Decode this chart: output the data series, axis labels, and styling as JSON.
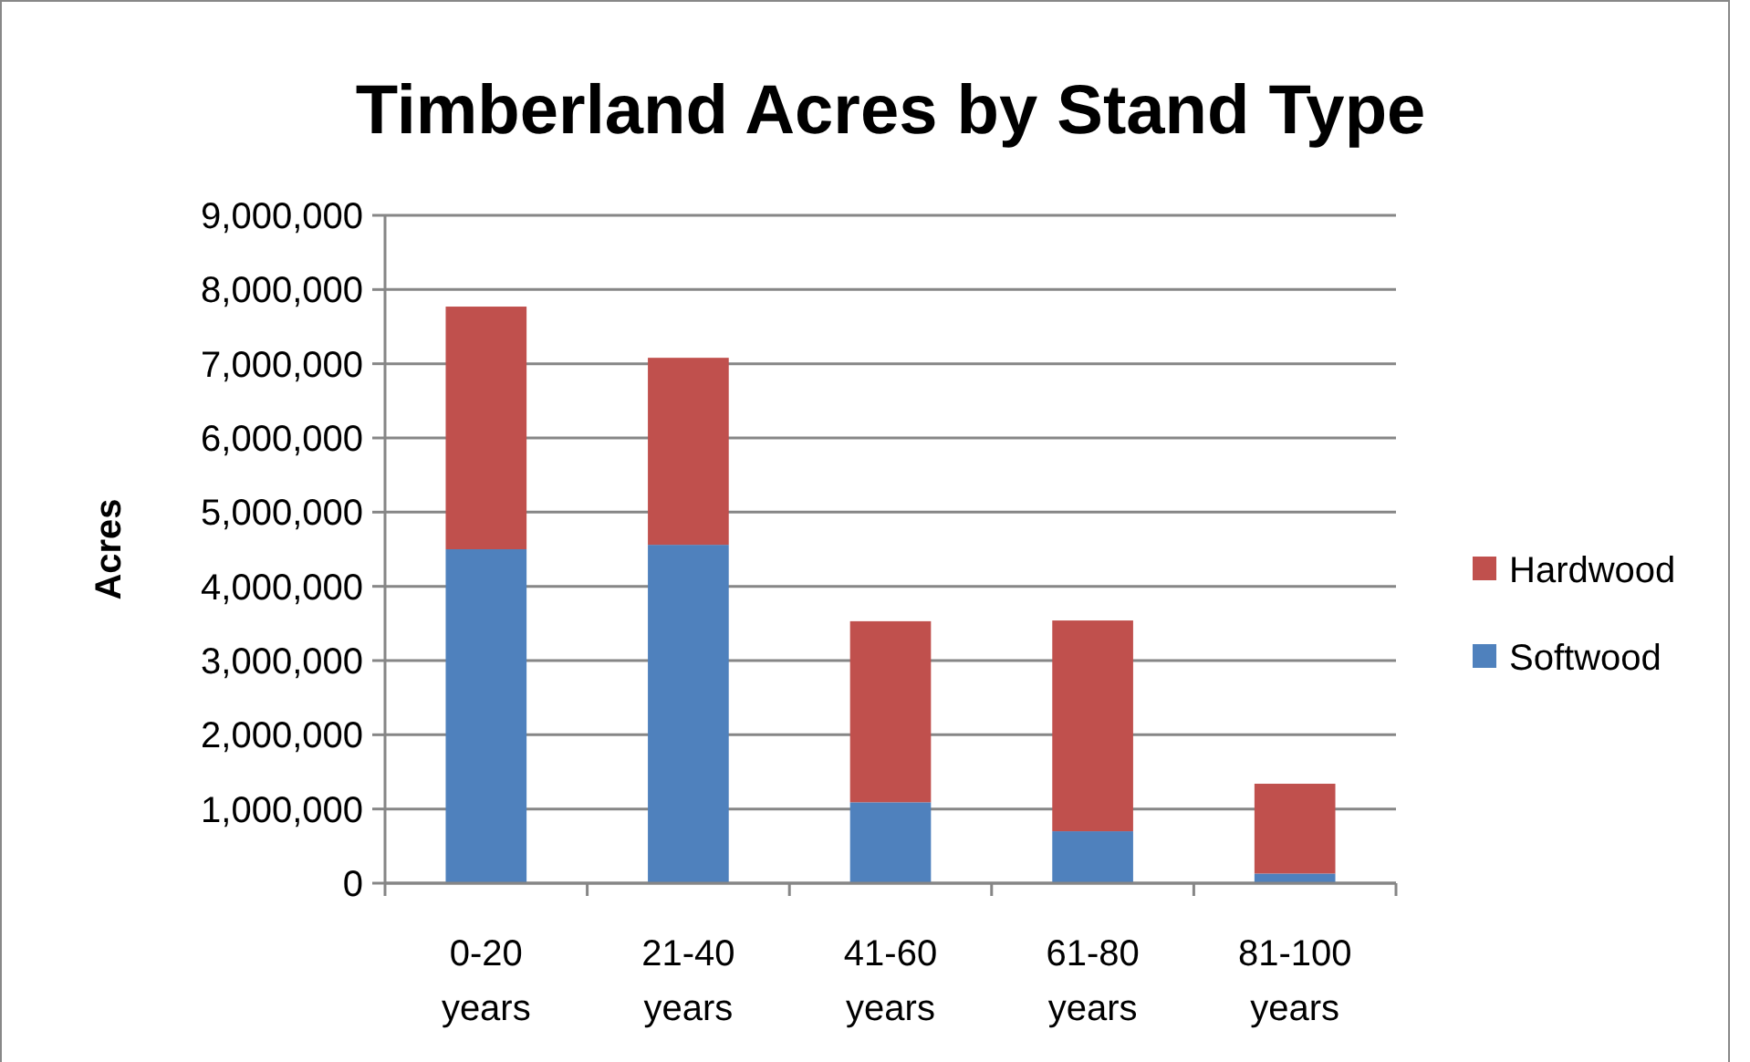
{
  "chart_data": {
    "type": "bar",
    "title": "Timberland Acres by Stand Type",
    "ylabel": "Acres",
    "categories": [
      "0-20 years",
      "21-40 years",
      "41-60 years",
      "61-80 years",
      "81-100 years"
    ],
    "stacked": true,
    "series": [
      {
        "name": "Softwood",
        "color": "#4f81bd",
        "values": [
          4500000,
          4560000,
          1090000,
          700000,
          130000
        ]
      },
      {
        "name": "Hardwood",
        "color": "#c0504d",
        "values": [
          3270000,
          2520000,
          2440000,
          2840000,
          1210000
        ]
      }
    ],
    "ylim": [
      0,
      9000000
    ],
    "yticks": [
      0,
      {
        "value": 1000000,
        "label": "1,000,000"
      },
      {
        "value": 2000000,
        "label": "2,000,000"
      },
      {
        "value": 3000000,
        "label": "3,000,000"
      },
      {
        "value": 4000000,
        "label": "4,000,000"
      },
      {
        "value": 5000000,
        "label": "5,000,000"
      },
      {
        "value": 6000000,
        "label": "6,000,000"
      },
      {
        "value": 7000000,
        "label": "7,000,000"
      },
      {
        "value": 8000000,
        "label": "8,000,000"
      },
      {
        "value": 9000000,
        "label": "9,000,000"
      }
    ],
    "grid": true,
    "legend": "right"
  }
}
